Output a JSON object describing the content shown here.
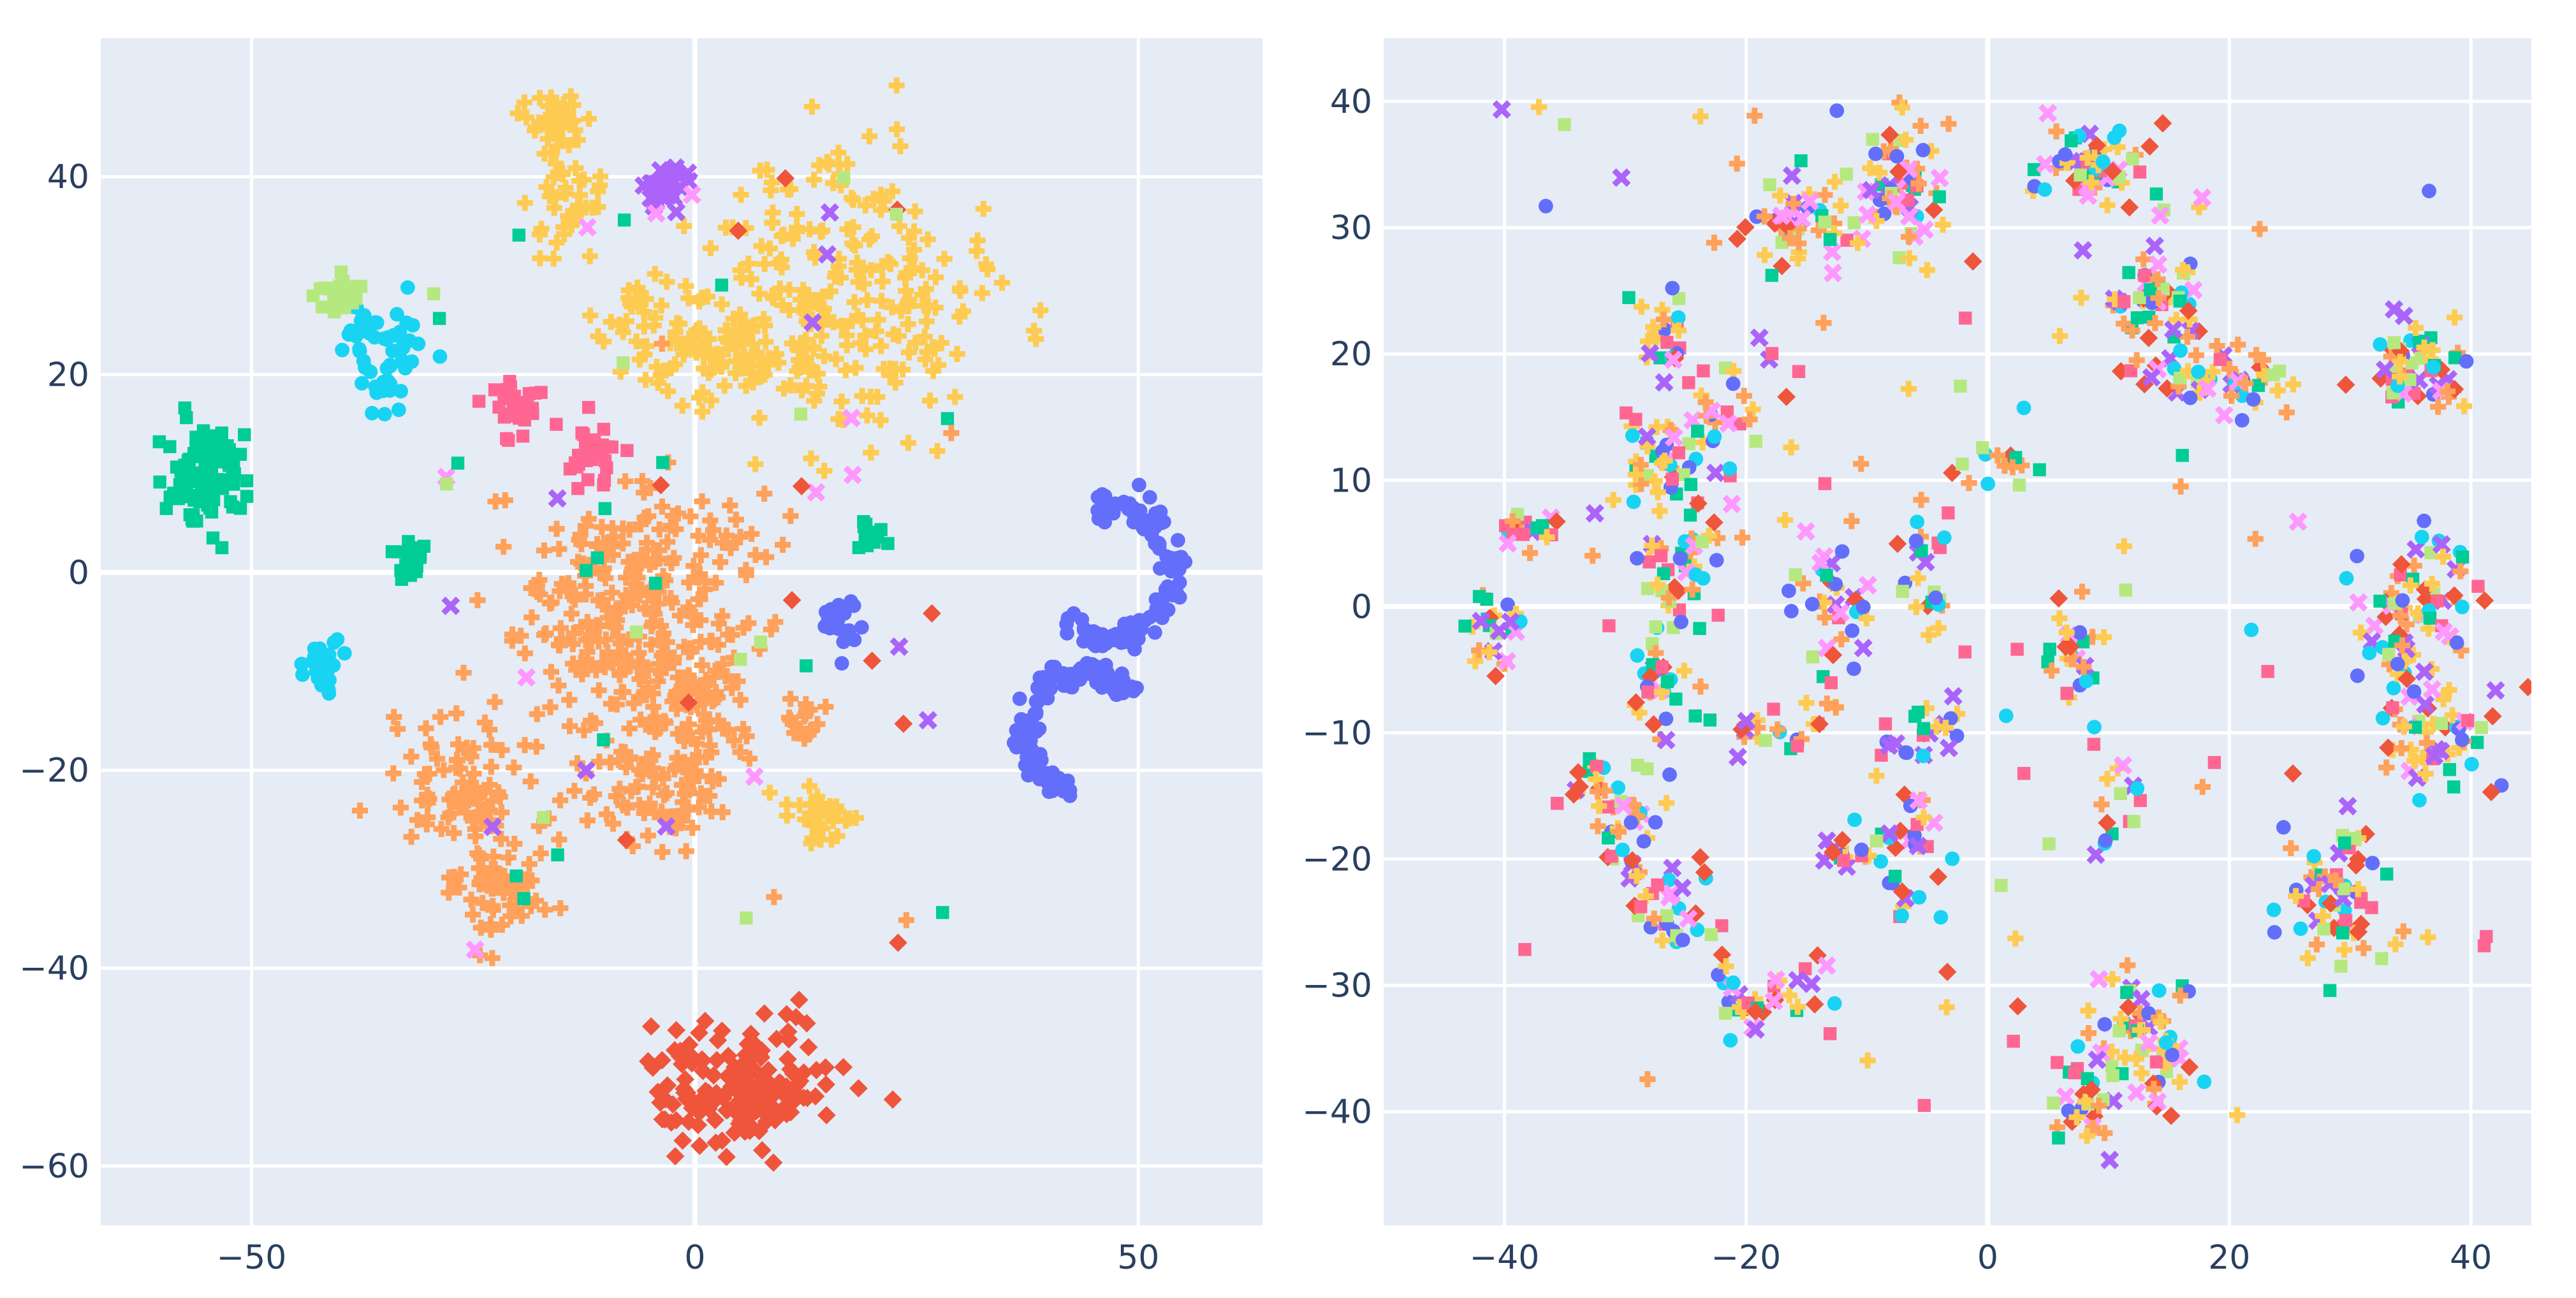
{
  "chart_data": [
    {
      "type": "scatter",
      "title": "",
      "xlabel": "",
      "ylabel": "",
      "xlim": [
        -67,
        64
      ],
      "ylim": [
        -66,
        54
      ],
      "x_ticks": [
        -50,
        0,
        50
      ],
      "y_ticks": [
        -60,
        -40,
        -20,
        0,
        20,
        40
      ],
      "x_tick_labels": [
        "−50",
        "0",
        "50"
      ],
      "y_tick_labels": [
        "−60",
        "−40",
        "−20",
        "0",
        "20",
        "40"
      ],
      "grid": true,
      "legend": "none",
      "clusters": [
        {
          "cx": -16,
          "cy": 45,
          "sx": 2.0,
          "sy": 1.6,
          "n": 40,
          "color": "#FECB52",
          "marker": "cross"
        },
        {
          "cx": -15,
          "cy": 37,
          "sx": 2.0,
          "sy": 3.5,
          "n": 40,
          "color": "#FECB52",
          "marker": "cross"
        },
        {
          "cx": -6,
          "cy": 27,
          "sx": 2.5,
          "sy": 2.5,
          "n": 25,
          "color": "#FECB52",
          "marker": "cross"
        },
        {
          "cx": 15,
          "cy": 28,
          "sx": 9,
          "sy": 7,
          "n": 260,
          "color": "#FECB52",
          "marker": "cross"
        },
        {
          "cx": 2,
          "cy": 22,
          "sx": 5,
          "sy": 2,
          "n": 70,
          "color": "#FECB52",
          "marker": "cross"
        },
        {
          "cx": 14,
          "cy": -25,
          "sx": 1.8,
          "sy": 1.6,
          "n": 35,
          "color": "#FECB52",
          "marker": "cross"
        },
        {
          "cx": -8,
          "cy": -7,
          "sx": 6,
          "sy": 7,
          "n": 240,
          "color": "#FFA15A",
          "marker": "cross"
        },
        {
          "cx": -25,
          "cy": -22,
          "sx": 4,
          "sy": 4,
          "n": 90,
          "color": "#FFA15A",
          "marker": "cross"
        },
        {
          "cx": -22,
          "cy": -32,
          "sx": 3,
          "sy": 2.5,
          "n": 60,
          "color": "#FFA15A",
          "marker": "cross"
        },
        {
          "cx": -5,
          "cy": -22,
          "sx": 4,
          "sy": 3,
          "n": 70,
          "color": "#FFA15A",
          "marker": "cross"
        },
        {
          "cx": 0,
          "cy": -14,
          "sx": 3,
          "sy": 4,
          "n": 70,
          "color": "#FFA15A",
          "marker": "cross"
        },
        {
          "cx": 12,
          "cy": -15,
          "sx": 1.2,
          "sy": 1.5,
          "n": 18,
          "color": "#FFA15A",
          "marker": "cross"
        },
        {
          "cx": -5,
          "cy": 3,
          "sx": 6,
          "sy": 3,
          "n": 60,
          "color": "#FFA15A",
          "marker": "cross"
        },
        {
          "cx": -55,
          "cy": 10,
          "sx": 2.3,
          "sy": 2.5,
          "n": 110,
          "color": "#00CC96",
          "marker": "square"
        },
        {
          "cx": -32,
          "cy": 1,
          "sx": 1.0,
          "sy": 1.3,
          "n": 20,
          "color": "#00CC96",
          "marker": "square"
        },
        {
          "cx": 20,
          "cy": 4,
          "sx": 1.0,
          "sy": 0.9,
          "n": 15,
          "color": "#00CC96",
          "marker": "square"
        },
        {
          "cx": -35,
          "cy": 22,
          "sx": 2.5,
          "sy": 3,
          "n": 55,
          "color": "#19D3F3",
          "marker": "circle"
        },
        {
          "cx": -42,
          "cy": -9,
          "sx": 1.2,
          "sy": 1.0,
          "n": 30,
          "color": "#19D3F3",
          "marker": "circle"
        },
        {
          "cx": -40,
          "cy": 28,
          "sx": 1.2,
          "sy": 1.2,
          "n": 25,
          "color": "#B6E880",
          "marker": "square"
        },
        {
          "cx": -20,
          "cy": 17,
          "sx": 1.5,
          "sy": 1.4,
          "n": 30,
          "color": "#FF6692",
          "marker": "square"
        },
        {
          "cx": -11,
          "cy": 12,
          "sx": 1.4,
          "sy": 2.2,
          "n": 30,
          "color": "#FF6692",
          "marker": "square"
        },
        {
          "cx": -3,
          "cy": 39,
          "sx": 1.5,
          "sy": 1.0,
          "n": 30,
          "color": "#AB63FA",
          "marker": "x"
        },
        {
          "cx": 16,
          "cy": -5,
          "sx": 1.0,
          "sy": 1.2,
          "n": 25,
          "color": "#636EFA",
          "marker": "circle"
        },
        {
          "cx": 5,
          "cy": -52,
          "sx": 5,
          "sy": 3,
          "n": 180,
          "color": "#EF553B",
          "marker": "diamond"
        }
      ],
      "rings": [
        {
          "cx": 47,
          "cy": 0,
          "r": 6.8,
          "sy": 1.0,
          "start": 220,
          "end": 470,
          "n": 120,
          "color": "#636EFA",
          "marker": "circle"
        },
        {
          "cx": 44,
          "cy": -16,
          "r": 7.0,
          "sy": 0.85,
          "start": 40,
          "end": 260,
          "n": 120,
          "color": "#636EFA",
          "marker": "circle"
        }
      ],
      "scatter_noise": [
        {
          "xlim": [
            -30,
            30
          ],
          "ylim": [
            -40,
            40
          ],
          "n": 70,
          "colors": [
            "#EF553B",
            "#AB63FA",
            "#FF97FF",
            "#FFA15A",
            "#B6E880",
            "#00CC96"
          ],
          "markers": [
            "diamond",
            "x",
            "x",
            "cross",
            "square",
            "square"
          ]
        }
      ]
    },
    {
      "type": "scatter",
      "title": "",
      "xlabel": "",
      "ylabel": "",
      "xlim": [
        -50,
        45
      ],
      "ylim": [
        -49,
        45
      ],
      "x_ticks": [
        -40,
        -20,
        0,
        20,
        40
      ],
      "y_ticks": [
        -40,
        -30,
        -20,
        -10,
        0,
        10,
        20,
        30,
        40
      ],
      "x_tick_labels": [
        "−40",
        "−20",
        "0",
        "20",
        "40"
      ],
      "y_tick_labels": [
        "−40",
        "−30",
        "−20",
        "−10",
        "0",
        "10",
        "20",
        "30",
        "40"
      ],
      "grid": true,
      "legend": "none",
      "mixed_colors": [
        "#FFA15A",
        "#FECB52",
        "#FFA15A",
        "#FECB52",
        "#636EFA",
        "#EF553B",
        "#00CC96",
        "#19D3F3",
        "#AB63FA",
        "#FF6692",
        "#B6E880",
        "#FF97FF"
      ],
      "mixed_markers": {
        "#FFA15A": "cross",
        "#FECB52": "cross",
        "#636EFA": "circle",
        "#EF553B": "diamond",
        "#00CC96": "square",
        "#19D3F3": "circle",
        "#AB63FA": "x",
        "#FF6692": "square",
        "#B6E880": "square",
        "#FF97FF": "x"
      },
      "clusters": [
        {
          "cx": -7,
          "cy": 33,
          "sx": 2.0,
          "sy": 2.5,
          "n": 70
        },
        {
          "cx": -16,
          "cy": 30,
          "sx": 2.5,
          "sy": 2.0,
          "n": 45
        },
        {
          "cx": 9,
          "cy": 35,
          "sx": 2.2,
          "sy": 1.8,
          "n": 55
        },
        {
          "cx": 14,
          "cy": 25,
          "sx": 2.2,
          "sy": 2.5,
          "n": 60
        },
        {
          "cx": 18,
          "cy": 18,
          "sx": 3.0,
          "sy": 1.8,
          "n": 50
        },
        {
          "cx": 36,
          "cy": 19,
          "sx": 2.0,
          "sy": 2.0,
          "n": 55
        },
        {
          "cx": 36,
          "cy": 1,
          "sx": 2.5,
          "sy": 2.5,
          "n": 60
        },
        {
          "cx": 37,
          "cy": -10,
          "sx": 2.3,
          "sy": 2.3,
          "n": 60
        },
        {
          "cx": 29,
          "cy": -23,
          "sx": 2.5,
          "sy": 3.0,
          "n": 60
        },
        {
          "cx": 13,
          "cy": -34,
          "sx": 2.5,
          "sy": 3.0,
          "n": 70
        },
        {
          "cx": 8,
          "cy": -40,
          "sx": 1.3,
          "sy": 1.8,
          "n": 25
        },
        {
          "cx": -27,
          "cy": 22,
          "sx": 1.2,
          "sy": 1.5,
          "n": 25
        },
        {
          "cx": -26,
          "cy": 12,
          "sx": 2.0,
          "sy": 3.0,
          "n": 55
        },
        {
          "cx": -25,
          "cy": 3,
          "sx": 2.0,
          "sy": 3.0,
          "n": 45
        },
        {
          "cx": -27,
          "cy": -8,
          "sx": 1.5,
          "sy": 2.5,
          "n": 30
        },
        {
          "cx": -30,
          "cy": -18,
          "sx": 1.5,
          "sy": 2.0,
          "n": 25
        },
        {
          "cx": -26,
          "cy": -24,
          "sx": 2.0,
          "sy": 2.0,
          "n": 30
        },
        {
          "cx": -19,
          "cy": -31,
          "sx": 2.5,
          "sy": 1.5,
          "n": 35
        },
        {
          "cx": 7,
          "cy": -4,
          "sx": 1.2,
          "sy": 2.5,
          "n": 30
        },
        {
          "cx": -13,
          "cy": 0,
          "sx": 1.5,
          "sy": 4.0,
          "n": 40
        },
        {
          "cx": -5,
          "cy": 3,
          "sx": 1.2,
          "sy": 3.0,
          "n": 25
        },
        {
          "cx": -6,
          "cy": -10,
          "sx": 2.5,
          "sy": 1.2,
          "n": 25
        },
        {
          "cx": -7,
          "cy": -20,
          "sx": 1.5,
          "sy": 2.5,
          "n": 30
        },
        {
          "cx": -17,
          "cy": -10,
          "sx": 2.5,
          "sy": 1.0,
          "n": 20
        },
        {
          "cx": -12,
          "cy": -20,
          "sx": 1.5,
          "sy": 0.8,
          "n": 15
        },
        {
          "cx": 11,
          "cy": -16,
          "sx": 1.0,
          "sy": 1.5,
          "n": 15
        },
        {
          "cx": -20,
          "cy": 17,
          "sx": 2.5,
          "sy": 3.0,
          "n": 20
        },
        {
          "cx": -41,
          "cy": -2,
          "sx": 1.2,
          "sy": 2.5,
          "n": 25
        },
        {
          "cx": -38,
          "cy": 6,
          "sx": 1.5,
          "sy": 1.0,
          "n": 20
        },
        {
          "cx": -33,
          "cy": -14,
          "sx": 1.5,
          "sy": 1.5,
          "n": 20
        },
        {
          "cx": 0,
          "cy": 11,
          "sx": 2.0,
          "sy": 0.8,
          "n": 15
        },
        {
          "cx": 34,
          "cy": -4,
          "sx": 1.5,
          "sy": 1.0,
          "n": 12
        }
      ],
      "scatter_noise": [
        {
          "xlim": [
            -42,
            42
          ],
          "ylim": [
            -42,
            40
          ],
          "n": 90
        }
      ]
    }
  ]
}
